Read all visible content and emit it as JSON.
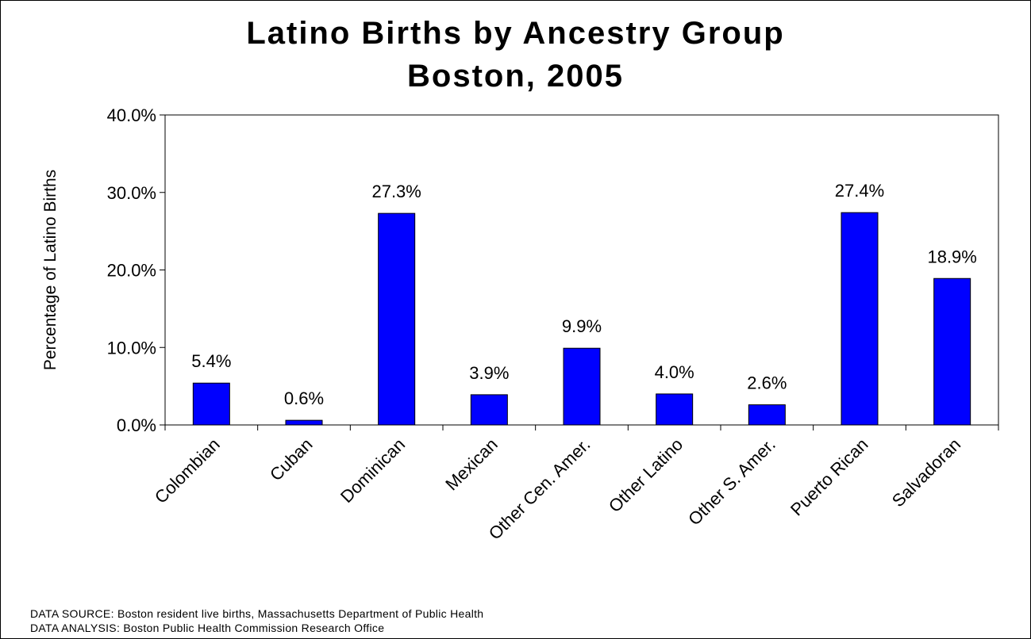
{
  "chart_data": {
    "type": "bar",
    "title": "Latino Births by Ancestry Group",
    "subtitle": "Boston, 2005",
    "ylabel": "Percentage of Latino Births",
    "xlabel": "",
    "ylim": [
      0,
      40
    ],
    "yticks": [
      "0.0%",
      "10.0%",
      "20.0%",
      "30.0%",
      "40.0%"
    ],
    "categories": [
      "Colombian",
      "Cuban",
      "Dominican",
      "Mexican",
      "Other Cen. Amer.",
      "Other Latino",
      "Other S. Amer.",
      "Puerto Rican",
      "Salvadoran"
    ],
    "values": [
      5.4,
      0.6,
      27.3,
      3.9,
      9.9,
      4.0,
      2.6,
      27.4,
      18.9
    ],
    "data_labels": [
      "5.4%",
      "0.6%",
      "27.3%",
      "3.9%",
      "9.9%",
      "4.0%",
      "2.6%",
      "27.4%",
      "18.9%"
    ],
    "bar_color": "#0000FF",
    "grid": false,
    "legend": "none"
  },
  "footer": {
    "source": "DATA SOURCE:  Boston resident live births, Massachusetts Department of Public Health",
    "analysis": "DATA ANALYSIS:  Boston Public Health Commission Research Office"
  }
}
